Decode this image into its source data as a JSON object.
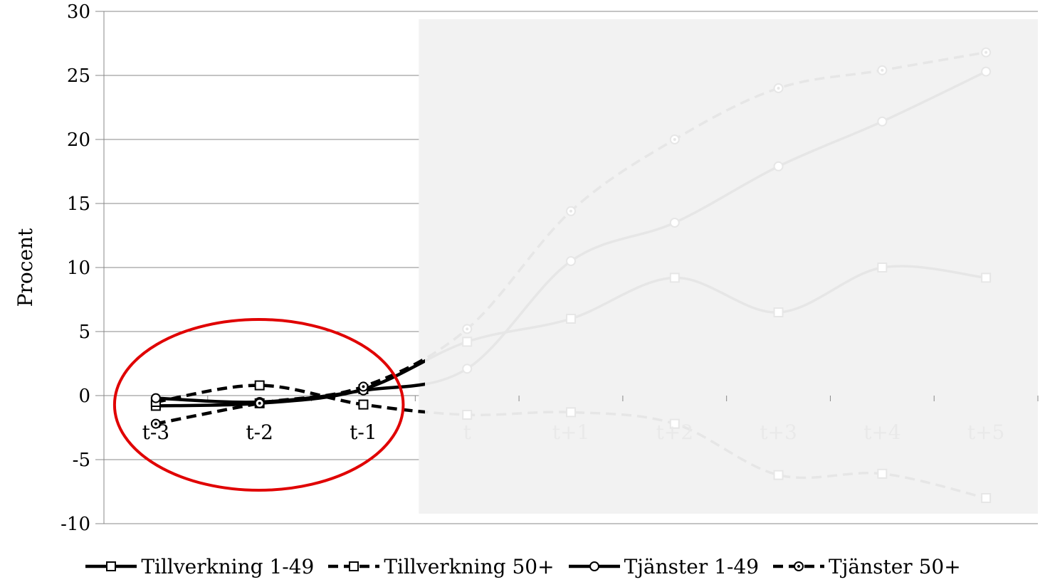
{
  "chart_data": {
    "type": "line",
    "title": "",
    "xlabel": "",
    "ylabel": "Procent",
    "ylim": [
      -10,
      30
    ],
    "yticks": [
      "30",
      "25",
      "20",
      "15",
      "10",
      "5",
      "0",
      "-5",
      "-10"
    ],
    "categories": [
      "t-3",
      "t-2",
      "t-1",
      "t",
      "t+1",
      "t+2",
      "t+3",
      "t+4",
      "t+5"
    ],
    "shaded_from_category": "t",
    "grid": "horizontal",
    "legend_position": "bottom",
    "series": [
      {
        "name": "Tillverkning 1-49",
        "marker": "square",
        "dash": "solid",
        "values": [
          -0.8,
          -0.6,
          0.5,
          4.2,
          6.0,
          9.2,
          6.5,
          10.0,
          9.2
        ]
      },
      {
        "name": "Tillverkning 50+",
        "marker": "square",
        "dash": "dashed",
        "values": [
          -0.5,
          0.8,
          -0.7,
          -1.5,
          -1.3,
          -2.2,
          -6.2,
          -6.1,
          -8.0
        ]
      },
      {
        "name": "Tjänster 1-49",
        "marker": "circle",
        "dash": "solid",
        "values": [
          -0.2,
          -0.5,
          0.4,
          2.1,
          10.5,
          13.5,
          17.9,
          21.4,
          25.3
        ]
      },
      {
        "name": "Tjänster 50+",
        "marker": "circle",
        "dash": "dashed",
        "values": [
          -2.2,
          -0.6,
          0.7,
          5.2,
          14.4,
          20.0,
          24.0,
          25.4,
          26.8
        ]
      }
    ],
    "highlight": {
      "shape": "ellipse",
      "color": "#e00000",
      "around_categories": [
        "t-3",
        "t-2",
        "t-1"
      ]
    },
    "colors": {
      "line": "#000000",
      "faded_line": "#e6e6e6",
      "shade": "#f2f2f2",
      "grid": "#888888",
      "highlight": "#e00000"
    }
  }
}
